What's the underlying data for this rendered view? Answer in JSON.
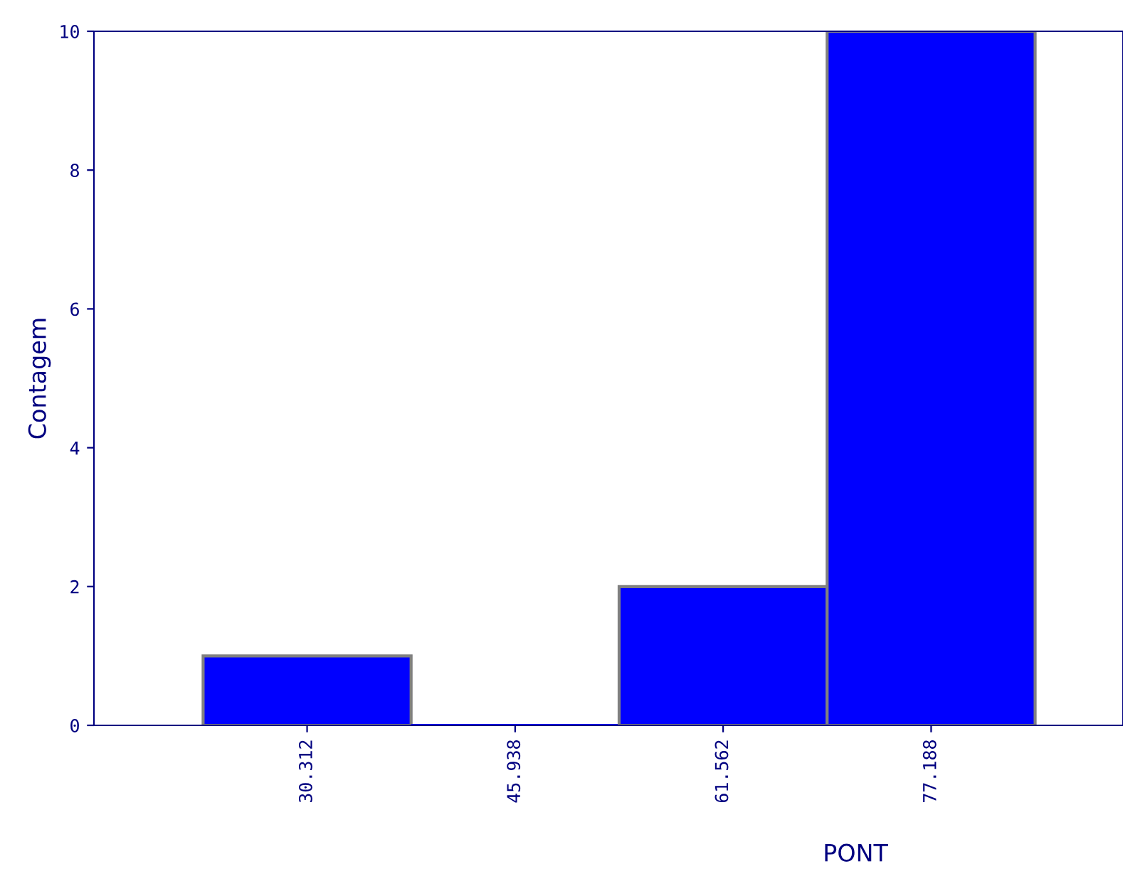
{
  "chart_data": {
    "type": "histogram",
    "xlabel": "PONT",
    "ylabel": "Contagem",
    "bins": [
      22.5,
      38.125,
      53.75,
      69.375,
      85.0
    ],
    "values": [
      1,
      0,
      2,
      10
    ],
    "color": "#0000ff",
    "xlim": [
      14.3,
      91.6
    ],
    "xticks": [
      30.312,
      45.938,
      61.562,
      77.188
    ],
    "ylim": [
      0,
      10
    ],
    "yticks": [
      0,
      2,
      4,
      6,
      8,
      10
    ],
    "grid": false
  }
}
